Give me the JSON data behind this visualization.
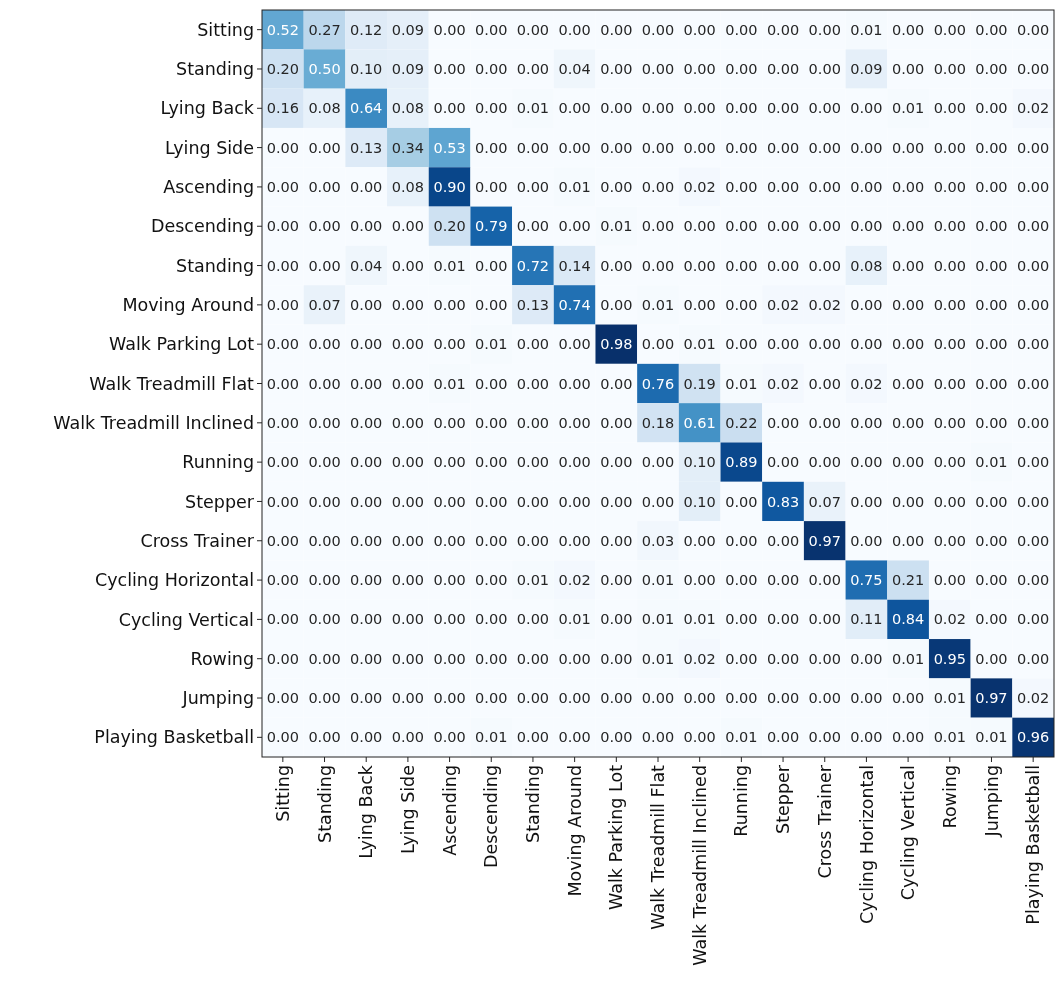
{
  "chart_data": {
    "type": "heatmap",
    "categories": [
      "Sitting",
      "Standing",
      "Lying Back",
      "Lying Side",
      "Ascending",
      "Descending",
      "Standing",
      "Moving Around",
      "Walk Parking Lot",
      "Walk Treadmill Flat",
      "Walk Treadmill Inclined",
      "Running",
      "Stepper",
      "Cross Trainer",
      "Cycling Horizontal",
      "Cycling Vertical",
      "Rowing",
      "Jumping",
      "Playing Basketball"
    ],
    "y_categories": [
      "Sitting",
      "Standing",
      "Lying Back",
      "Lying Side",
      "Ascending",
      "Descending",
      "Standing",
      "Moving Around",
      "Walk Parking Lot",
      "Walk Treadmill Flat",
      "Walk Treadmill Inclined",
      "Running",
      "Stepper",
      "Cross Trainer",
      "Cycling Horizontal",
      "Cycling Vertical",
      "Rowing",
      "Jumping",
      "Playing Basketball"
    ],
    "cells": [
      [
        0.52,
        0.27,
        0.12,
        0.09,
        0,
        0,
        0,
        0,
        0,
        0,
        0,
        0,
        0,
        0,
        0.01,
        0,
        0,
        0,
        0
      ],
      [
        0.2,
        0.5,
        0.1,
        0.09,
        0,
        0,
        0,
        0.04,
        0,
        0,
        0,
        0,
        0,
        0,
        0.09,
        0,
        0,
        0,
        0
      ],
      [
        0.16,
        0.08,
        0.64,
        0.08,
        0,
        0,
        0.01,
        0,
        0,
        0,
        0,
        0,
        0,
        0,
        0,
        0.01,
        0,
        0,
        0.02
      ],
      [
        0,
        0,
        0.13,
        0.34,
        0.53,
        0,
        0,
        0,
        0,
        0,
        0,
        0,
        0,
        0,
        0,
        0,
        0,
        0,
        0
      ],
      [
        0,
        0,
        0,
        0.08,
        0.9,
        0,
        0,
        0.01,
        0,
        0,
        0.02,
        0,
        0,
        0,
        0,
        0,
        0,
        0,
        0
      ],
      [
        0,
        0,
        0,
        0,
        0.2,
        0.79,
        0,
        0,
        0.01,
        0,
        0,
        0,
        0,
        0,
        0,
        0,
        0,
        0,
        0
      ],
      [
        0,
        0,
        0.04,
        0,
        0.01,
        0,
        0.72,
        0.14,
        0,
        0,
        0,
        0,
        0,
        0,
        0.08,
        0,
        0,
        0,
        0
      ],
      [
        0,
        0.07,
        0,
        0,
        0,
        0,
        0.13,
        0.74,
        0,
        0.01,
        0,
        0,
        0.02,
        0.02,
        0,
        0,
        0,
        0,
        0
      ],
      [
        0,
        0,
        0,
        0,
        0,
        0.01,
        0,
        0,
        0.98,
        0,
        0.01,
        0,
        0,
        0,
        0,
        0,
        0,
        0,
        0
      ],
      [
        0,
        0,
        0,
        0,
        0.01,
        0,
        0,
        0,
        0,
        0.76,
        0.19,
        0.01,
        0.02,
        0,
        0.02,
        0,
        0,
        0,
        0
      ],
      [
        0,
        0,
        0,
        0,
        0,
        0,
        0,
        0,
        0,
        0.18,
        0.61,
        0.22,
        0,
        0,
        0,
        0,
        0,
        0,
        0
      ],
      [
        0,
        0,
        0,
        0,
        0,
        0,
        0,
        0,
        0,
        0,
        0.1,
        0.89,
        0,
        0,
        0,
        0,
        0,
        0.01,
        0
      ],
      [
        0,
        0,
        0,
        0,
        0,
        0,
        0,
        0,
        0,
        0,
        0.1,
        0,
        0.83,
        0.07,
        0,
        0,
        0,
        0,
        0
      ],
      [
        0,
        0,
        0,
        0,
        0,
        0,
        0,
        0,
        0,
        0.03,
        0,
        0,
        0,
        0.97,
        0,
        0,
        0,
        0,
        0
      ],
      [
        0,
        0,
        0,
        0,
        0,
        0,
        0.01,
        0.02,
        0,
        0.01,
        0,
        0,
        0,
        0,
        0.75,
        0.21,
        0,
        0,
        0
      ],
      [
        0,
        0,
        0,
        0,
        0,
        0,
        0,
        0.01,
        0,
        0.01,
        0.01,
        0,
        0,
        0,
        0.11,
        0.84,
        0.02,
        0,
        0
      ],
      [
        0,
        0,
        0,
        0,
        0,
        0,
        0,
        0,
        0,
        0.01,
        0.02,
        0,
        0,
        0,
        0,
        0.01,
        0.95,
        0,
        0
      ],
      [
        0,
        0,
        0,
        0,
        0,
        0,
        0,
        0,
        0,
        0,
        0,
        0,
        0,
        0,
        0,
        0,
        0.01,
        0.97,
        0.02
      ],
      [
        0,
        0,
        0,
        0,
        0,
        0.01,
        0,
        0,
        0,
        0,
        0,
        0.01,
        0,
        0,
        0,
        0,
        0.01,
        0.01,
        0.96
      ]
    ],
    "cell_labels": [
      [
        "0.52",
        "0.27",
        "0.12",
        "0.09",
        "0.00",
        "0.00",
        "0.00",
        "0.00",
        "0.00",
        "0.00",
        "0.00",
        "0.00",
        "0.00",
        "0.00",
        "0.01",
        "0.00",
        "0.00",
        "0.00",
        "0.00"
      ],
      [
        "0.20",
        "0.50",
        "0.10",
        "0.09",
        "0.00",
        "0.00",
        "0.00",
        "0.04",
        "0.00",
        "0.00",
        "0.00",
        "0.00",
        "0.00",
        "0.00",
        "0.09",
        "0.00",
        "0.00",
        "0.00",
        "0.00"
      ],
      [
        "0.16",
        "0.08",
        "0.64",
        "0.08",
        "0.00",
        "0.00",
        "0.01",
        "0.00",
        "0.00",
        "0.00",
        "0.00",
        "0.00",
        "0.00",
        "0.00",
        "0.00",
        "0.01",
        "0.00",
        "0.00",
        "0.02"
      ],
      [
        "0.00",
        "0.00",
        "0.13",
        "0.34",
        "0.53",
        "0.00",
        "0.00",
        "0.00",
        "0.00",
        "0.00",
        "0.00",
        "0.00",
        "0.00",
        "0.00",
        "0.00",
        "0.00",
        "0.00",
        "0.00",
        "0.00"
      ],
      [
        "0.00",
        "0.00",
        "0.00",
        "0.08",
        "0.90",
        "0.00",
        "0.00",
        "0.01",
        "0.00",
        "0.00",
        "0.02",
        "0.00",
        "0.00",
        "0.00",
        "0.00",
        "0.00",
        "0.00",
        "0.00",
        "0.00"
      ],
      [
        "0.00",
        "0.00",
        "0.00",
        "0.00",
        "0.20",
        "0.79",
        "0.00",
        "0.00",
        "0.01",
        "0.00",
        "0.00",
        "0.00",
        "0.00",
        "0.00",
        "0.00",
        "0.00",
        "0.00",
        "0.00",
        "0.00"
      ],
      [
        "0.00",
        "0.00",
        "0.04",
        "0.00",
        "0.01",
        "0.00",
        "0.72",
        "0.14",
        "0.00",
        "0.00",
        "0.00",
        "0.00",
        "0.00",
        "0.00",
        "0.08",
        "0.00",
        "0.00",
        "0.00",
        "0.00"
      ],
      [
        "0.00",
        "0.07",
        "0.00",
        "0.00",
        "0.00",
        "0.00",
        "0.13",
        "0.74",
        "0.00",
        "0.01",
        "0.00",
        "0.00",
        "0.02",
        "0.02",
        "0.00",
        "0.00",
        "0.00",
        "0.00",
        "0.00"
      ],
      [
        "0.00",
        "0.00",
        "0.00",
        "0.00",
        "0.00",
        "0.01",
        "0.00",
        "0.00",
        "0.98",
        "0.00",
        "0.01",
        "0.00",
        "0.00",
        "0.00",
        "0.00",
        "0.00",
        "0.00",
        "0.00",
        "0.00"
      ],
      [
        "0.00",
        "0.00",
        "0.00",
        "0.00",
        "0.01",
        "0.00",
        "0.00",
        "0.00",
        "0.00",
        "0.76",
        "0.19",
        "0.01",
        "0.02",
        "0.00",
        "0.02",
        "0.00",
        "0.00",
        "0.00",
        "0.00"
      ],
      [
        "0.00",
        "0.00",
        "0.00",
        "0.00",
        "0.00",
        "0.00",
        "0.00",
        "0.00",
        "0.00",
        "0.18",
        "0.61",
        "0.22",
        "0.00",
        "0.00",
        "0.00",
        "0.00",
        "0.00",
        "0.00",
        "0.00"
      ],
      [
        "0.00",
        "0.00",
        "0.00",
        "0.00",
        "0.00",
        "0.00",
        "0.00",
        "0.00",
        "0.00",
        "0.00",
        "0.10",
        "0.89",
        "0.00",
        "0.00",
        "0.00",
        "0.00",
        "0.00",
        "0.01",
        "0.00"
      ],
      [
        "0.00",
        "0.00",
        "0.00",
        "0.00",
        "0.00",
        "0.00",
        "0.00",
        "0.00",
        "0.00",
        "0.00",
        "0.10",
        "0.00",
        "0.83",
        "0.07",
        "0.00",
        "0.00",
        "0.00",
        "0.00",
        "0.00"
      ],
      [
        "0.00",
        "0.00",
        "0.00",
        "0.00",
        "0.00",
        "0.00",
        "0.00",
        "0.00",
        "0.00",
        "0.03",
        "0.00",
        "0.00",
        "0.00",
        "0.97",
        "0.00",
        "0.00",
        "0.00",
        "0.00",
        "0.00"
      ],
      [
        "0.00",
        "0.00",
        "0.00",
        "0.00",
        "0.00",
        "0.00",
        "0.01",
        "0.02",
        "0.00",
        "0.01",
        "0.00",
        "0.00",
        "0.00",
        "0.00",
        "0.75",
        "0.21",
        "0.00",
        "0.00",
        "0.00"
      ],
      [
        "0.00",
        "0.00",
        "0.00",
        "0.00",
        "0.00",
        "0.00",
        "0.00",
        "0.01",
        "0.00",
        "0.01",
        "0.01",
        "0.00",
        "0.00",
        "0.00",
        "0.11",
        "0.84",
        "0.02",
        "0.00",
        "0.00"
      ],
      [
        "0.00",
        "0.00",
        "0.00",
        "0.00",
        "0.00",
        "0.00",
        "0.00",
        "0.00",
        "0.00",
        "0.01",
        "0.02",
        "0.00",
        "0.00",
        "0.00",
        "0.00",
        "0.01",
        "0.95",
        "0.00",
        "0.00"
      ],
      [
        "0.00",
        "0.00",
        "0.00",
        "0.00",
        "0.00",
        "0.00",
        "0.00",
        "0.00",
        "0.00",
        "0.00",
        "0.00",
        "0.00",
        "0.00",
        "0.00",
        "0.00",
        "0.00",
        "0.01",
        "0.97",
        "0.02"
      ],
      [
        "0.00",
        "0.00",
        "0.00",
        "0.00",
        "0.00",
        "0.01",
        "0.00",
        "0.00",
        "0.00",
        "0.00",
        "0.00",
        "0.01",
        "0.00",
        "0.00",
        "0.00",
        "0.00",
        "0.01",
        "0.01",
        "0.96"
      ]
    ]
  }
}
